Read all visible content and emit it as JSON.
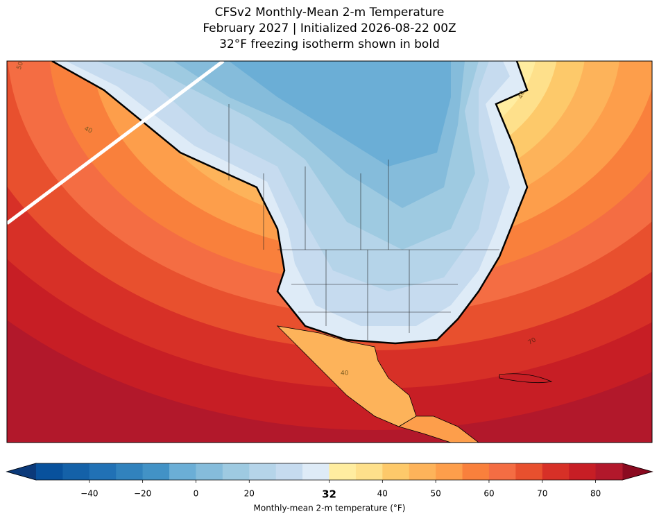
{
  "title": "CFSv2 Monthly-Mean 2-m Temperature",
  "subtitle": "February 2027 | Initialized 2026-08-22 00Z",
  "note": "32°F freezing isotherm shown in bold",
  "contour_labels": [
    50,
    40,
    40,
    40,
    70
  ],
  "colorbar": {
    "label": "Monthly-mean 2-m temperature (°F)",
    "levels": [
      -60,
      -50,
      -40,
      -30,
      -20,
      -10,
      0,
      10,
      20,
      24,
      28,
      32,
      36,
      40,
      45,
      50,
      55,
      60,
      65,
      70,
      75,
      80,
      85
    ],
    "colors": [
      "#08519c",
      "#1461a8",
      "#2171b5",
      "#3182bd",
      "#4292c6",
      "#6baed6",
      "#85bcdb",
      "#9ecae1",
      "#b5d4e9",
      "#c6dbef",
      "#deebf7",
      "#ffeda0",
      "#fee08b",
      "#fdc96a",
      "#fdb35a",
      "#fd9e4b",
      "#f9803c",
      "#f46d43",
      "#e8502e",
      "#d73027",
      "#c71e25",
      "#b2182b"
    ],
    "under_color": "#0b3a7a",
    "over_color": "#8b0a20",
    "ticks": [
      {
        "value": -40,
        "label": "−40"
      },
      {
        "value": -20,
        "label": "−20"
      },
      0,
      20,
      32,
      40,
      50,
      60,
      70,
      80
    ],
    "bold_tick": 32
  }
}
